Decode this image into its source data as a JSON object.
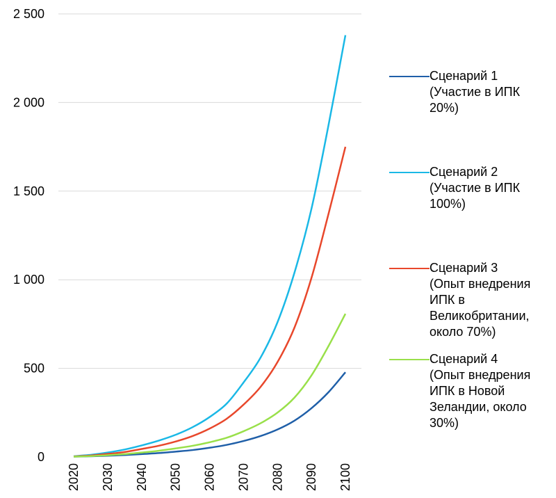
{
  "chart_data": {
    "type": "line",
    "x": [
      2020,
      2025,
      2030,
      2035,
      2040,
      2045,
      2050,
      2055,
      2060,
      2065,
      2070,
      2075,
      2080,
      2085,
      2090,
      2095,
      2100
    ],
    "x_tick_labels": [
      "2020",
      "2030",
      "2040",
      "2050",
      "2060",
      "2070",
      "2080",
      "2090",
      "2100"
    ],
    "y_tick_labels": [
      "0",
      "500",
      "1 000",
      "1 500",
      "2 000",
      "2 500"
    ],
    "y_ticks": [
      0,
      500,
      1000,
      1500,
      2000,
      2500
    ],
    "ylim": [
      0,
      2500
    ],
    "xlim": [
      2020,
      2100
    ],
    "grid": "horizontal",
    "legend_position": "right",
    "series": [
      {
        "name": "Сценарий 1\n(Участие в ИПК\n20%)",
        "color": "#1f5fa8",
        "values": [
          2,
          4,
          7,
          11,
          16,
          22,
          30,
          39,
          52,
          68,
          90,
          118,
          155,
          205,
          275,
          365,
          478
        ]
      },
      {
        "name": "Сценарий 2\n(Участие в ИПК\n100%)",
        "color": "#1ab8e6",
        "values": [
          4,
          12,
          25,
          42,
          65,
          92,
          125,
          168,
          225,
          300,
          420,
          560,
          760,
          1040,
          1400,
          1870,
          2380
        ]
      },
      {
        "name": "Сценарий 3\n(Опыт внедрения\nИПК в\nВеликобритании,\nоколо 70%)",
        "color": "#e8472b",
        "values": [
          3,
          8,
          17,
          28,
          45,
          63,
          87,
          118,
          160,
          215,
          295,
          395,
          535,
          730,
          1010,
          1370,
          1750
        ]
      },
      {
        "name": "Сценарий 4\n(Опыт  внедрения\nИПК в Новой\nЗеландии, около\n30%)",
        "color": "#99e04a",
        "values": [
          2,
          5,
          10,
          16,
          25,
          35,
          48,
          63,
          83,
          108,
          145,
          190,
          250,
          335,
          460,
          625,
          808
        ]
      }
    ]
  }
}
